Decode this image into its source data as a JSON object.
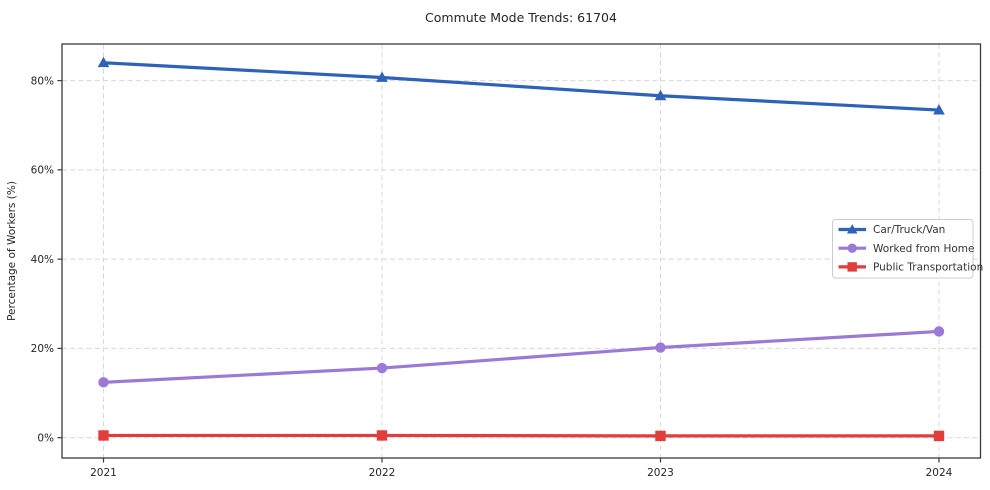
{
  "chart_data": {
    "type": "line",
    "title": "Commute Mode Trends: 61704",
    "xlabel": "",
    "ylabel": "Percentage of Workers (%)",
    "categories": [
      "2021",
      "2022",
      "2023",
      "2024"
    ],
    "series": [
      {
        "name": "Car/Truck/Van",
        "color": "#2d62b8",
        "marker": "triangle",
        "values": [
          84.0,
          80.7,
          76.6,
          73.4
        ]
      },
      {
        "name": "Worked from Home",
        "color": "#9b79d6",
        "marker": "circle",
        "values": [
          12.4,
          15.6,
          20.2,
          23.8
        ]
      },
      {
        "name": "Public Transportation",
        "color": "#e23d3d",
        "marker": "square",
        "values": [
          0.5,
          0.5,
          0.4,
          0.4
        ]
      }
    ],
    "yticks": [
      0,
      20,
      40,
      60,
      80
    ],
    "ytick_labels": [
      "0%",
      "20%",
      "40%",
      "60%",
      "80%"
    ],
    "ylim": [
      -4.55,
      88.2
    ],
    "grid": true,
    "legend_position": "center right"
  }
}
